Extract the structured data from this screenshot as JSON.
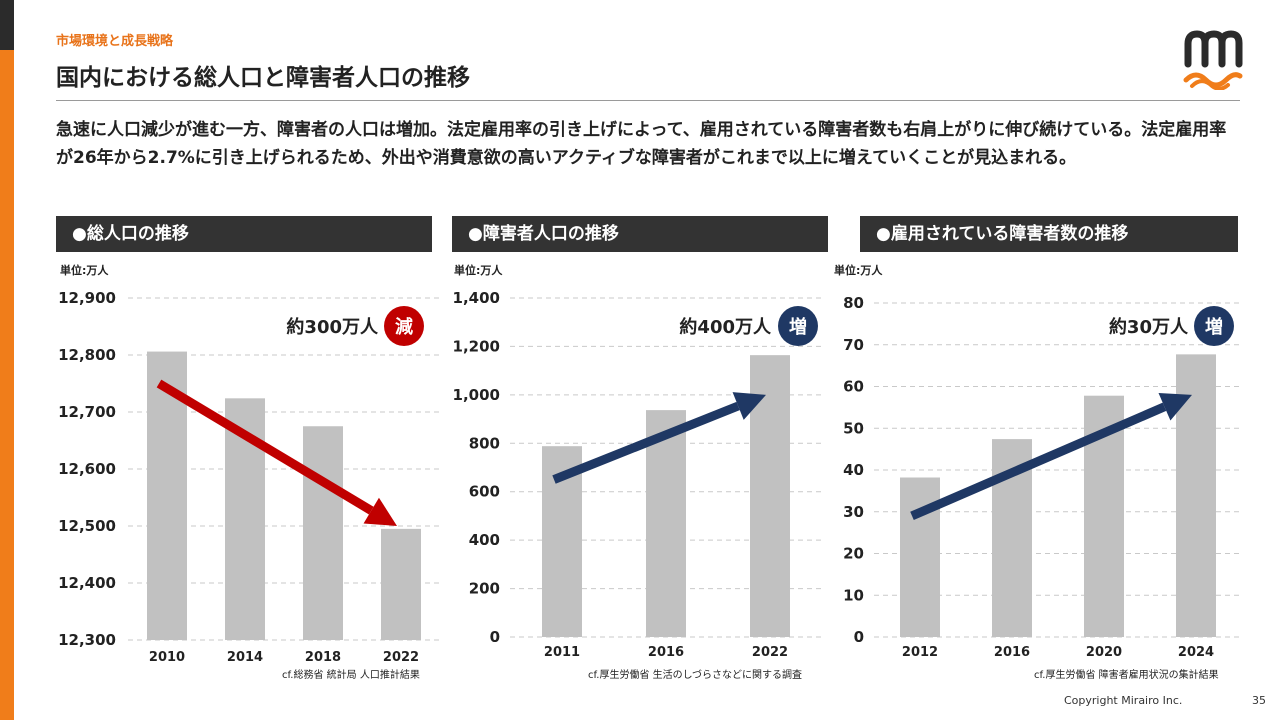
{
  "header": {
    "section": "市場環境と成長戦略",
    "title": "国内における総人口と障害者人口の推移"
  },
  "lead": "急速に人口減少が進む一方、障害者の人口は増加。法定雇用率の引き上げによって、雇用されている障害者数も右肩上がりに伸び続けている。法定雇用率が26年から2.7%に引き上げられるため、外出や消費意欲の高いアクティブな障害者がこれまで以上に増えていくことが見込まれる。",
  "colors": {
    "bar": "#c1c1c1",
    "down_arrow": "#c00000",
    "up_arrow": "#1f3864",
    "down_badge": "#c00000",
    "up_badge": "#1f3864",
    "panel_header": "#333333",
    "accent": "#f07d1a"
  },
  "panels": [
    {
      "header": "●総人口の推移",
      "unit": "単位:万人",
      "change": "約300万人",
      "badge": "減",
      "source": "cf.総務省 統計局 人口推計結果"
    },
    {
      "header": "●障害者人口の推移",
      "unit": "単位:万人",
      "change": "約400万人",
      "badge": "増",
      "source": "cf.厚生労働省 生活のしづらさなどに関する調査"
    },
    {
      "header": "●雇用されている障害者数の推移",
      "unit": "単位:万人",
      "change": "約30万人",
      "badge": "増",
      "source": "cf.厚生労働省 障害者雇用状況の集計結果"
    }
  ],
  "chart_data": [
    {
      "type": "bar",
      "title": "●総人口の推移",
      "ylabel": "単位:万人",
      "categories": [
        "2010",
        "2014",
        "2018",
        "2022"
      ],
      "values": [
        12806,
        12724,
        12675,
        12495
      ],
      "ylim": [
        12300,
        12900
      ],
      "yticks": [
        12300,
        12400,
        12500,
        12600,
        12700,
        12800,
        12900
      ],
      "ytick_labels": [
        "12,300",
        "12,400",
        "12,500",
        "12,600",
        "12,700",
        "12,800",
        "12,900"
      ],
      "grid": true,
      "trend": "down",
      "trend_from": 12750,
      "trend_to": 12500,
      "annotation": "約300万人 減"
    },
    {
      "type": "bar",
      "title": "●障害者人口の推移",
      "ylabel": "単位:万人",
      "categories": [
        "2011",
        "2016",
        "2022"
      ],
      "values": [
        788,
        937,
        1164
      ],
      "ylim": [
        0,
        1400
      ],
      "yticks": [
        0,
        200,
        400,
        600,
        800,
        1000,
        1200,
        1400
      ],
      "ytick_labels": [
        "0",
        "200",
        "400",
        "600",
        "800",
        "1,000",
        "1,200",
        "1,400"
      ],
      "grid": true,
      "trend": "up",
      "trend_from": 650,
      "trend_to": 1000,
      "annotation": "約400万人 増"
    },
    {
      "type": "bar",
      "title": "●雇用されている障害者数の推移",
      "ylabel": "単位:万人",
      "categories": [
        "2012",
        "2016",
        "2020",
        "2024"
      ],
      "values": [
        38.2,
        47.4,
        57.8,
        67.7
      ],
      "ylim": [
        0,
        80
      ],
      "yticks": [
        0,
        10,
        20,
        30,
        40,
        50,
        60,
        70,
        80
      ],
      "ytick_labels": [
        "0",
        "10",
        "20",
        "30",
        "40",
        "50",
        "60",
        "70",
        "80"
      ],
      "grid": true,
      "trend": "up",
      "trend_from": 29,
      "trend_to": 58,
      "annotation": "約30万人 増"
    }
  ],
  "footer": {
    "copyright": "Copyright Mirairo Inc.",
    "page": "35"
  }
}
